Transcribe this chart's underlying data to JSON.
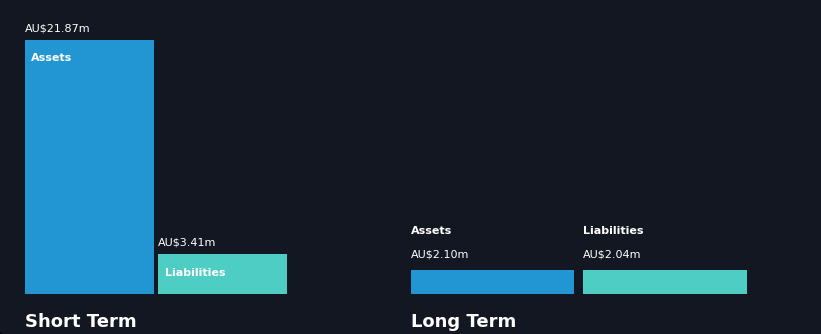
{
  "bg_color": "#131722",
  "short_term": {
    "assets_value": 21.87,
    "liabilities_value": 3.41,
    "assets_label": "Assets",
    "liabilities_label": "Liabilities",
    "assets_color": "#2196d3",
    "liabilities_color": "#4ecdc4",
    "section_label": "Short Term"
  },
  "long_term": {
    "assets_value": 2.1,
    "liabilities_value": 2.04,
    "assets_label": "Assets",
    "liabilities_label": "Liabilities",
    "assets_color": "#2196d3",
    "liabilities_color": "#4ecdc4",
    "section_label": "Long Term"
  },
  "text_color": "#ffffff",
  "label_fontsize": 8,
  "value_fontsize": 8,
  "section_fontsize": 13,
  "bar_label_fontsize": 8
}
